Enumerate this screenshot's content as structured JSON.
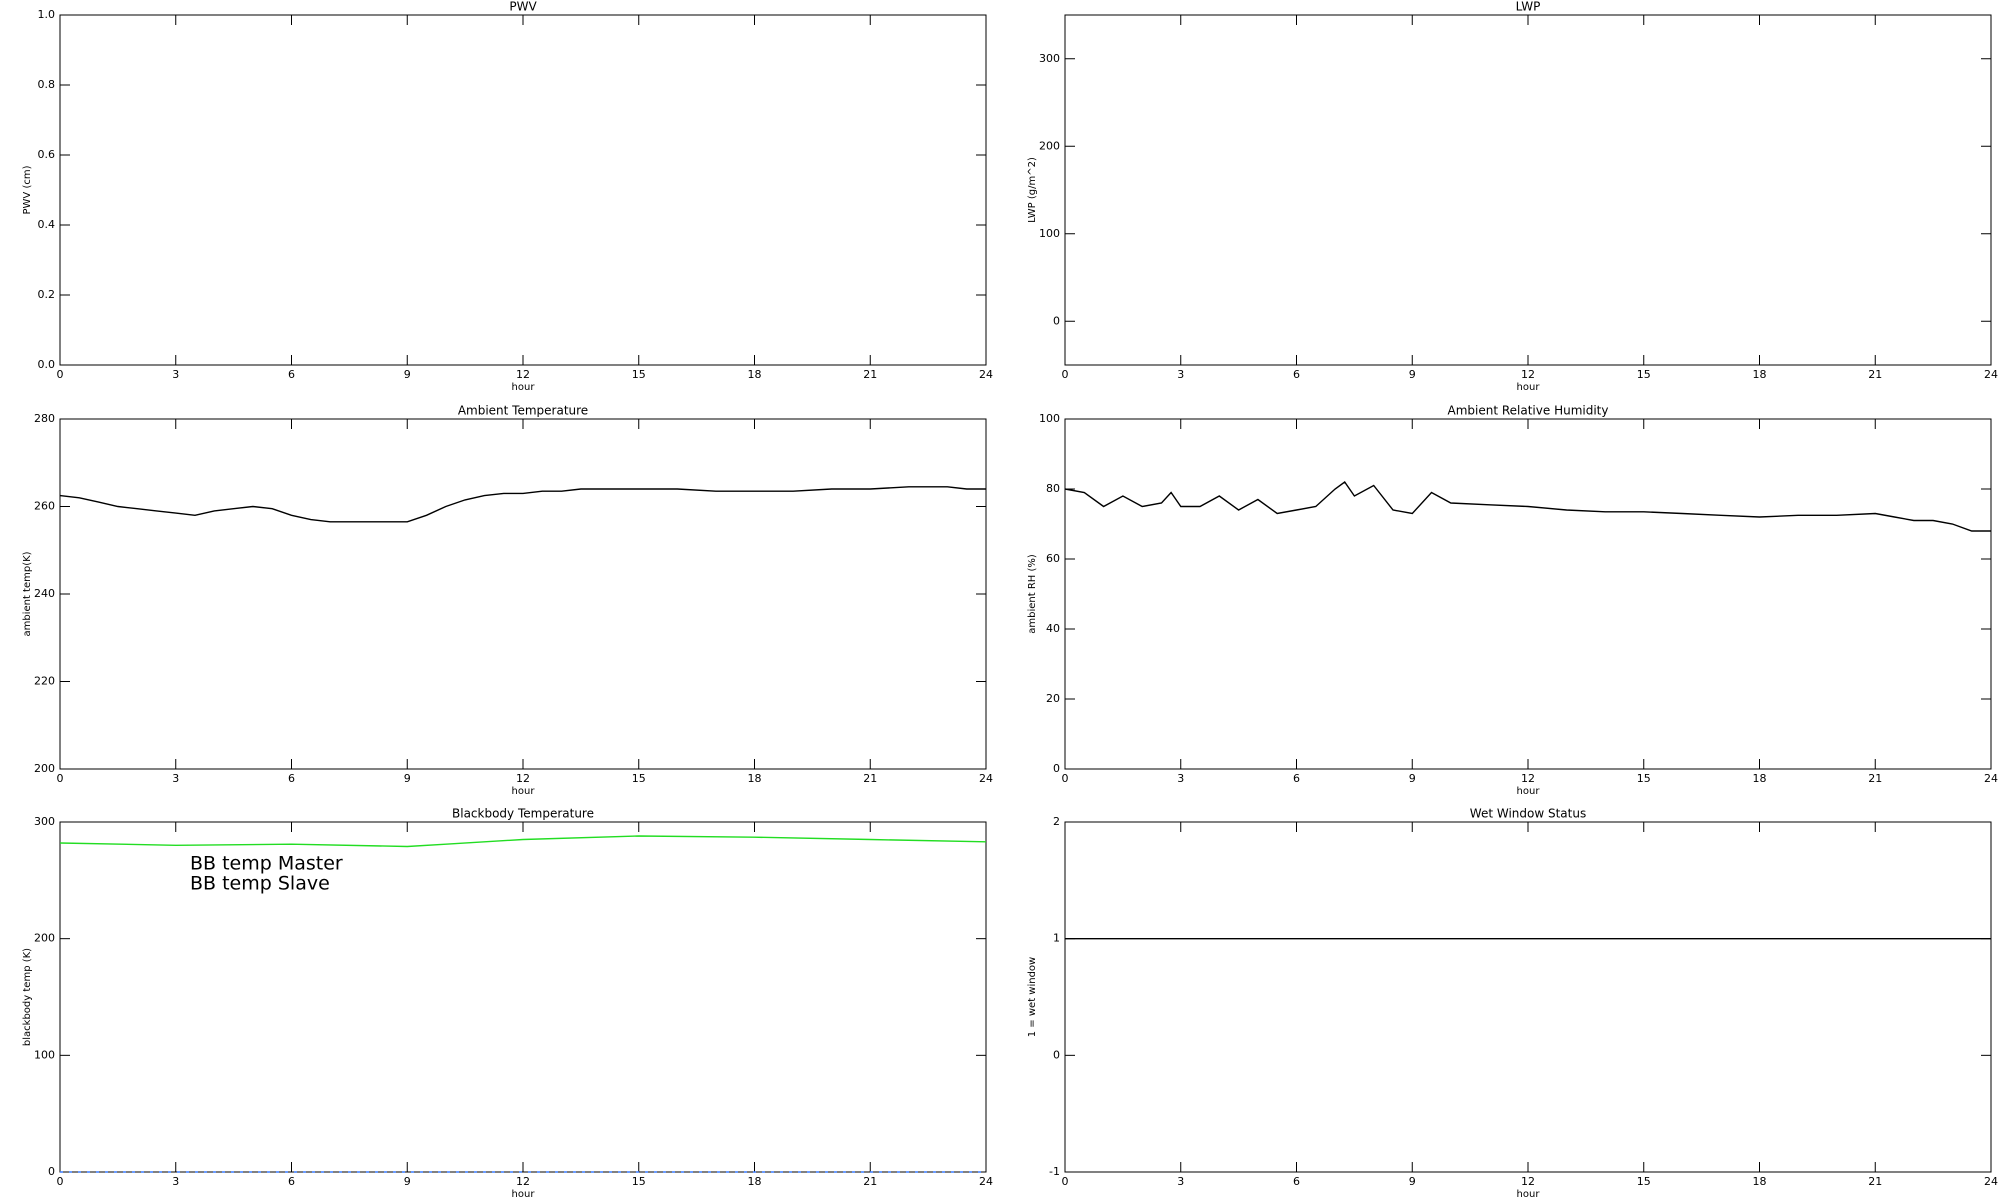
{
  "chart_data": [
    {
      "type": "line",
      "title": "PWV",
      "xlabel": "hour",
      "ylabel": "PWV (cm)",
      "xlim": [
        0,
        24
      ],
      "xticks": [
        0,
        3,
        6,
        9,
        12,
        15,
        18,
        21,
        24
      ],
      "ylim": [
        0,
        1
      ],
      "yticks": [
        {
          "value": 0,
          "label": "0.0"
        },
        0.2,
        0.4,
        0.6,
        0.8,
        {
          "value": 1,
          "label": "1.0"
        }
      ],
      "series": []
    },
    {
      "type": "line",
      "title": "LWP",
      "xlabel": "hour",
      "ylabel": "LWP (g/m^2)",
      "xlim": [
        0,
        24
      ],
      "xticks": [
        0,
        3,
        6,
        9,
        12,
        15,
        18,
        21,
        24
      ],
      "ylim": [
        -50,
        350
      ],
      "yticks": [
        0,
        100,
        200,
        300
      ],
      "series": []
    },
    {
      "type": "line",
      "title": "Ambient Temperature",
      "xlabel": "hour",
      "ylabel": "ambient temp(K)",
      "xlim": [
        0,
        24
      ],
      "xticks": [
        0,
        3,
        6,
        9,
        12,
        15,
        18,
        21,
        24
      ],
      "ylim": [
        200,
        280
      ],
      "yticks": [
        200,
        220,
        240,
        260,
        280
      ],
      "x": [
        0,
        0.5,
        1,
        1.5,
        2,
        2.5,
        3,
        3.5,
        4,
        4.5,
        5,
        5.5,
        6,
        6.5,
        7,
        7.5,
        8,
        8.5,
        9,
        9.5,
        10,
        10.5,
        11,
        11.5,
        12,
        12.5,
        13,
        13.5,
        14,
        15,
        16,
        17,
        18,
        19,
        20,
        21,
        22,
        23,
        23.5,
        24
      ],
      "series": [
        {
          "color": "#000000",
          "values": [
            262.5,
            262,
            261,
            260,
            259.5,
            259,
            258.5,
            258,
            259,
            259.5,
            260,
            259.5,
            258,
            257,
            256.5,
            256.5,
            256.5,
            256.5,
            256.5,
            258,
            260,
            261.5,
            262.5,
            263,
            263,
            263.5,
            263.5,
            264,
            264,
            264,
            264,
            263.5,
            263.5,
            263.5,
            264,
            264,
            264.5,
            264.5,
            264,
            264
          ]
        }
      ]
    },
    {
      "type": "line",
      "title": "Ambient Relative Humidity",
      "xlabel": "hour",
      "ylabel": "ambient RH (%)",
      "xlim": [
        0,
        24
      ],
      "xticks": [
        0,
        3,
        6,
        9,
        12,
        15,
        18,
        21,
        24
      ],
      "ylim": [
        0,
        100
      ],
      "yticks": [
        0,
        20,
        40,
        60,
        80,
        100
      ],
      "x": [
        0,
        0.5,
        1,
        1.5,
        2,
        2.5,
        2.75,
        3,
        3.5,
        4,
        4.5,
        5,
        5.5,
        6,
        6.5,
        7,
        7.25,
        7.5,
        8,
        8.5,
        9,
        9.5,
        10,
        11,
        12,
        13,
        14,
        15,
        16,
        17,
        18,
        19,
        20,
        21,
        21.5,
        22,
        22.5,
        23,
        23.5,
        24
      ],
      "series": [
        {
          "color": "#000000",
          "values": [
            80,
            79,
            75,
            78,
            75,
            76,
            79,
            75,
            75,
            78,
            74,
            77,
            73,
            74,
            75,
            80,
            82,
            78,
            81,
            74,
            73,
            79,
            76,
            75.5,
            75,
            74,
            73.5,
            73.5,
            73,
            72.5,
            72,
            72.5,
            72.5,
            73,
            72,
            71,
            71,
            70,
            68,
            68
          ]
        }
      ]
    },
    {
      "type": "line",
      "title": "Blackbody Temperature",
      "xlabel": "hour",
      "ylabel": "blackbody temp (K)",
      "xlim": [
        0,
        24
      ],
      "xticks": [
        0,
        3,
        6,
        9,
        12,
        15,
        18,
        21,
        24
      ],
      "ylim": [
        0,
        300
      ],
      "yticks": [
        0,
        100,
        200,
        300
      ],
      "x": [
        0,
        3,
        6,
        9,
        10,
        12,
        15,
        18,
        21,
        24
      ],
      "series": [
        {
          "name": "BB temp Master",
          "color": "#3a7bff",
          "values": [
            0,
            0,
            0,
            0,
            0,
            0,
            0,
            0,
            0,
            0
          ]
        },
        {
          "name": "BB temp Slave",
          "color": "#22dd22",
          "values": [
            282,
            280,
            281,
            279,
            281,
            285,
            288,
            287,
            285,
            283
          ]
        }
      ]
    },
    {
      "type": "line",
      "title": "Wet Window Status",
      "xlabel": "hour",
      "ylabel": "1 = wet window",
      "xlim": [
        0,
        24
      ],
      "xticks": [
        0,
        3,
        6,
        9,
        12,
        15,
        18,
        21,
        24
      ],
      "ylim": [
        -1,
        2
      ],
      "yticks": [
        -1,
        0,
        1,
        2
      ],
      "x": [
        0,
        24
      ],
      "series": [
        {
          "color": "#000000",
          "values": [
            1,
            1
          ]
        }
      ]
    }
  ]
}
